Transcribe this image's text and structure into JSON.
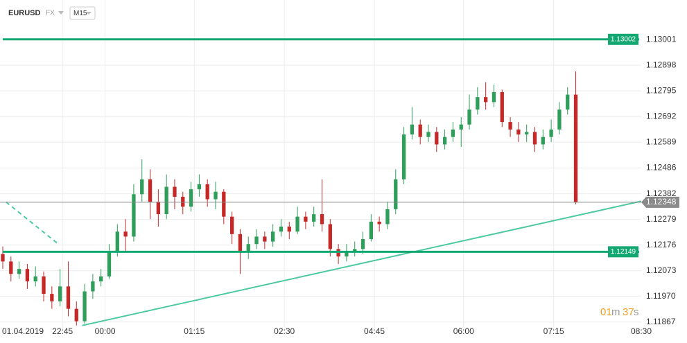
{
  "chart_data": {
    "type": "candlestick",
    "symbol": "EURUSD",
    "market": "FX",
    "timeframe": "M15",
    "open": [
      1.1214,
      1.1211,
      1.1206,
      1.1208,
      1.1203,
      1.1205,
      1.1198,
      1.1195,
      1.1201,
      1.1192,
      1.1187,
      1.1199,
      1.1203,
      1.1205,
      1.1215,
      1.1223,
      1.1221,
      1.1238,
      1.1244,
      1.1235,
      1.123,
      1.1241,
      1.1237,
      1.1233,
      1.124,
      1.1242,
      1.1236,
      1.1239,
      1.1229,
      1.1222,
      1.1215,
      1.1218,
      1.1221,
      1.1219,
      1.1223,
      1.1225,
      1.1223,
      1.1229,
      1.1227,
      1.123,
      1.1226,
      1.1216,
      1.1213,
      1.1215,
      1.1216,
      1.122,
      1.1227,
      1.1226,
      1.1232,
      1.1244,
      1.1262,
      1.1266,
      1.1261,
      1.1263,
      1.1258,
      1.1261,
      1.1264,
      1.1266,
      1.1272,
      1.1277,
      1.1275,
      1.1279,
      1.1267,
      1.1264,
      1.1262,
      1.1263,
      1.1258,
      1.1261,
      1.1264,
      1.1272,
      1.1278
    ],
    "high": [
      1.1217,
      1.1213,
      1.1211,
      1.121,
      1.1209,
      1.1207,
      1.1201,
      1.1208,
      1.1211,
      1.1195,
      1.1202,
      1.1206,
      1.1208,
      1.1218,
      1.1226,
      1.1228,
      1.1242,
      1.1252,
      1.1248,
      1.124,
      1.1246,
      1.1244,
      1.1239,
      1.1243,
      1.1246,
      1.1244,
      1.1243,
      1.124,
      1.1231,
      1.1224,
      1.1221,
      1.1224,
      1.1223,
      1.1226,
      1.1228,
      1.1227,
      1.1233,
      1.1231,
      1.1233,
      1.1244,
      1.1228,
      1.1218,
      1.1218,
      1.1219,
      1.1223,
      1.123,
      1.1229,
      1.1235,
      1.1248,
      1.1265,
      1.1273,
      1.1268,
      1.1266,
      1.1265,
      1.1264,
      1.1267,
      1.1269,
      1.1278,
      1.1281,
      1.1283,
      1.1282,
      1.128,
      1.1269,
      1.1267,
      1.1266,
      1.1265,
      1.1264,
      1.1268,
      1.1275,
      1.1281,
      1.12873
    ],
    "low": [
      1.1208,
      1.1203,
      1.1204,
      1.12,
      1.1201,
      1.1195,
      1.1192,
      1.1193,
      1.1189,
      1.11853,
      1.1186,
      1.1196,
      1.1201,
      1.1204,
      1.1213,
      1.1215,
      1.1219,
      1.1235,
      1.1228,
      1.1225,
      1.1228,
      1.1232,
      1.123,
      1.1231,
      1.1237,
      1.1233,
      1.1232,
      1.1226,
      1.1218,
      1.1206,
      1.1212,
      1.1216,
      1.1216,
      1.1217,
      1.1221,
      1.122,
      1.1222,
      1.1224,
      1.1225,
      1.1223,
      1.1213,
      1.121,
      1.1211,
      1.1213,
      1.1214,
      1.1219,
      1.1223,
      1.1224,
      1.123,
      1.1242,
      1.126,
      1.1258,
      1.1259,
      1.1255,
      1.1256,
      1.1259,
      1.1257,
      1.1264,
      1.127,
      1.1272,
      1.1273,
      1.1265,
      1.1261,
      1.1259,
      1.1259,
      1.1255,
      1.1256,
      1.1259,
      1.1262,
      1.127,
      1.1234
    ],
    "close": [
      1.1211,
      1.1206,
      1.1208,
      1.1203,
      1.1205,
      1.1198,
      1.1195,
      1.1201,
      1.1192,
      1.1187,
      1.1199,
      1.1203,
      1.1205,
      1.1215,
      1.1223,
      1.1221,
      1.1238,
      1.1244,
      1.1235,
      1.123,
      1.1241,
      1.1237,
      1.1233,
      1.124,
      1.1242,
      1.1236,
      1.1239,
      1.1229,
      1.1222,
      1.1215,
      1.1218,
      1.1221,
      1.1219,
      1.1223,
      1.1225,
      1.1223,
      1.1229,
      1.1227,
      1.123,
      1.1226,
      1.1216,
      1.1213,
      1.1215,
      1.1216,
      1.122,
      1.1227,
      1.1226,
      1.1232,
      1.1244,
      1.1262,
      1.1266,
      1.1261,
      1.1263,
      1.1258,
      1.1261,
      1.1264,
      1.1266,
      1.1272,
      1.1277,
      1.1275,
      1.1279,
      1.1267,
      1.1264,
      1.1262,
      1.1263,
      1.1258,
      1.1261,
      1.1264,
      1.1272,
      1.1278,
      1.12348
    ],
    "up_color": "#2f9e5b",
    "down_color": "#c62828",
    "xlim": [
      0,
      78
    ],
    "xticks": [
      {
        "value": 0,
        "label": "01.04.2019"
      },
      {
        "value": 7.3,
        "label": "22:45"
      },
      {
        "value": 12.5,
        "label": "00:00"
      },
      {
        "value": 23.4,
        "label": "01:15"
      },
      {
        "value": 34.4,
        "label": "02:30"
      },
      {
        "value": 45.4,
        "label": "04:45"
      },
      {
        "value": 56.3,
        "label": "06:00"
      },
      {
        "value": 67.3,
        "label": "07:15"
      },
      {
        "value": 78,
        "label": "08:30"
      }
    ],
    "ylim": [
      1.1183,
      1.1316
    ],
    "yticks": [
      1.13001,
      1.12898,
      1.12795,
      1.12692,
      1.12589,
      1.12486,
      1.12382,
      1.12279,
      1.12176,
      1.12073,
      {
        "value": 1.1197,
        "label": "1.11970"
      },
      1.11867
    ],
    "grid": true,
    "levels": [
      {
        "value": 1.13002,
        "color": "#13a872"
      },
      {
        "value": 1.12149,
        "color": "#13a872"
      }
    ],
    "last_price": 1.12348,
    "last_price_color": "#8a8a8a",
    "trendlines": [
      {
        "x": [
          9.7,
          78
        ],
        "y": [
          1.11853,
          1.12352
        ],
        "color": "#4cc9a0",
        "dashed": false
      },
      {
        "x": [
          0.4,
          6.9
        ],
        "y": [
          1.12349,
          1.12177
        ],
        "color": "#4cc9a0",
        "dashed": true
      }
    ],
    "countdown": {
      "minutes": "01",
      "minutes_unit": "m",
      "seconds": "37",
      "seconds_unit": "s"
    }
  }
}
